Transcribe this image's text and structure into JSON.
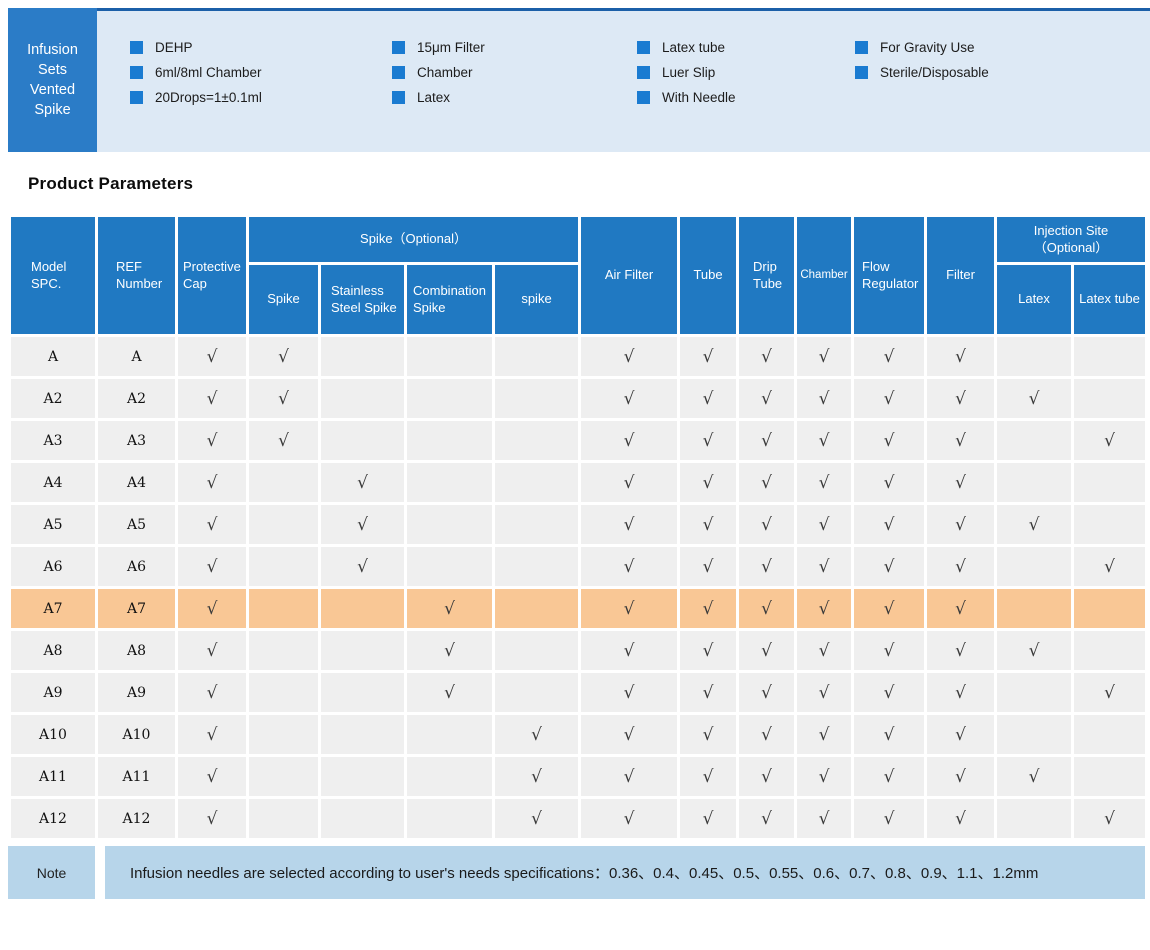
{
  "colors": {
    "banner_blue": "#2b7cc7",
    "header_blue": "#2079c2",
    "bullet_blue": "#1a7bd1",
    "band_bg": "#dde9f5",
    "band_line": "#1b5fa8",
    "row_bg": "#efefef",
    "highlight": "#f9c795",
    "note_bg": "#b7d5ea",
    "check_color": "#3a3a3a"
  },
  "banner": {
    "title_lines": [
      "Infusion",
      "Sets",
      "Vented",
      "Spike"
    ],
    "feature_columns": [
      [
        "DEHP",
        "6ml/8ml Chamber",
        "20Drops=1±0.1ml"
      ],
      [
        "15μm Filter",
        "Chamber",
        "Latex"
      ],
      [
        "Latex tube",
        "Luer Slip",
        "With Needle"
      ],
      [
        "For Gravity Use",
        "Sterile/Disposable"
      ]
    ]
  },
  "section_title": "Product Parameters",
  "table": {
    "check_glyph": "√",
    "header": {
      "model": "Model SPC.",
      "ref": "REF Number",
      "protective_cap": "Protective Cap",
      "spike_group": "Spike（Optional）",
      "spike_sub": [
        "Spike",
        "Stainless Steel Spike",
        "Combination Spike",
        "spike"
      ],
      "air_filter": "Air Filter",
      "tube": "Tube",
      "drip_tube": "Drip Tube",
      "chamber": "Chamber",
      "flow_regulator": "Flow Regulator",
      "filter": "Filter",
      "injection_group_line1": "Injection Site",
      "injection_group_line2": "（Optional）",
      "injection_sub": [
        "Latex",
        "Latex tube"
      ]
    },
    "column_keys": [
      "protective-cap",
      "spike",
      "stainless-steel-spike",
      "combination-spike",
      "spike-plain",
      "air-filter",
      "tube",
      "drip-tube",
      "chamber",
      "flow-regulator",
      "filter",
      "latex",
      "latex-tube"
    ],
    "rows": [
      {
        "model": "A",
        "ref": "A",
        "highlight": false,
        "checks": [
          1,
          1,
          0,
          0,
          0,
          1,
          1,
          1,
          1,
          1,
          1,
          0,
          0
        ]
      },
      {
        "model": "A2",
        "ref": "A2",
        "highlight": false,
        "checks": [
          1,
          1,
          0,
          0,
          0,
          1,
          1,
          1,
          1,
          1,
          1,
          1,
          0
        ]
      },
      {
        "model": "A3",
        "ref": "A3",
        "highlight": false,
        "checks": [
          1,
          1,
          0,
          0,
          0,
          1,
          1,
          1,
          1,
          1,
          1,
          0,
          1
        ]
      },
      {
        "model": "A4",
        "ref": "A4",
        "highlight": false,
        "checks": [
          1,
          0,
          1,
          0,
          0,
          1,
          1,
          1,
          1,
          1,
          1,
          0,
          0
        ]
      },
      {
        "model": "A5",
        "ref": "A5",
        "highlight": false,
        "checks": [
          1,
          0,
          1,
          0,
          0,
          1,
          1,
          1,
          1,
          1,
          1,
          1,
          0
        ]
      },
      {
        "model": "A6",
        "ref": "A6",
        "highlight": false,
        "checks": [
          1,
          0,
          1,
          0,
          0,
          1,
          1,
          1,
          1,
          1,
          1,
          0,
          1
        ]
      },
      {
        "model": "A7",
        "ref": "A7",
        "highlight": true,
        "checks": [
          1,
          0,
          0,
          1,
          0,
          1,
          1,
          1,
          1,
          1,
          1,
          0,
          0
        ]
      },
      {
        "model": "A8",
        "ref": "A8",
        "highlight": false,
        "checks": [
          1,
          0,
          0,
          1,
          0,
          1,
          1,
          1,
          1,
          1,
          1,
          1,
          0
        ]
      },
      {
        "model": "A9",
        "ref": "A9",
        "highlight": false,
        "checks": [
          1,
          0,
          0,
          1,
          0,
          1,
          1,
          1,
          1,
          1,
          1,
          0,
          1
        ]
      },
      {
        "model": "A10",
        "ref": "A10",
        "highlight": false,
        "checks": [
          1,
          0,
          0,
          0,
          1,
          1,
          1,
          1,
          1,
          1,
          1,
          0,
          0
        ]
      },
      {
        "model": "A11",
        "ref": "A11",
        "highlight": false,
        "checks": [
          1,
          0,
          0,
          0,
          1,
          1,
          1,
          1,
          1,
          1,
          1,
          1,
          0
        ]
      },
      {
        "model": "A12",
        "ref": "A12",
        "highlight": false,
        "checks": [
          1,
          0,
          0,
          0,
          1,
          1,
          1,
          1,
          1,
          1,
          1,
          0,
          1
        ]
      }
    ],
    "note": {
      "label": "Note",
      "text": "Infusion needles are selected according to user's needs specifications：0.36、0.4、0.45、0.5、0.55、0.6、0.7、0.8、0.9、1.1、1.2mm"
    }
  }
}
